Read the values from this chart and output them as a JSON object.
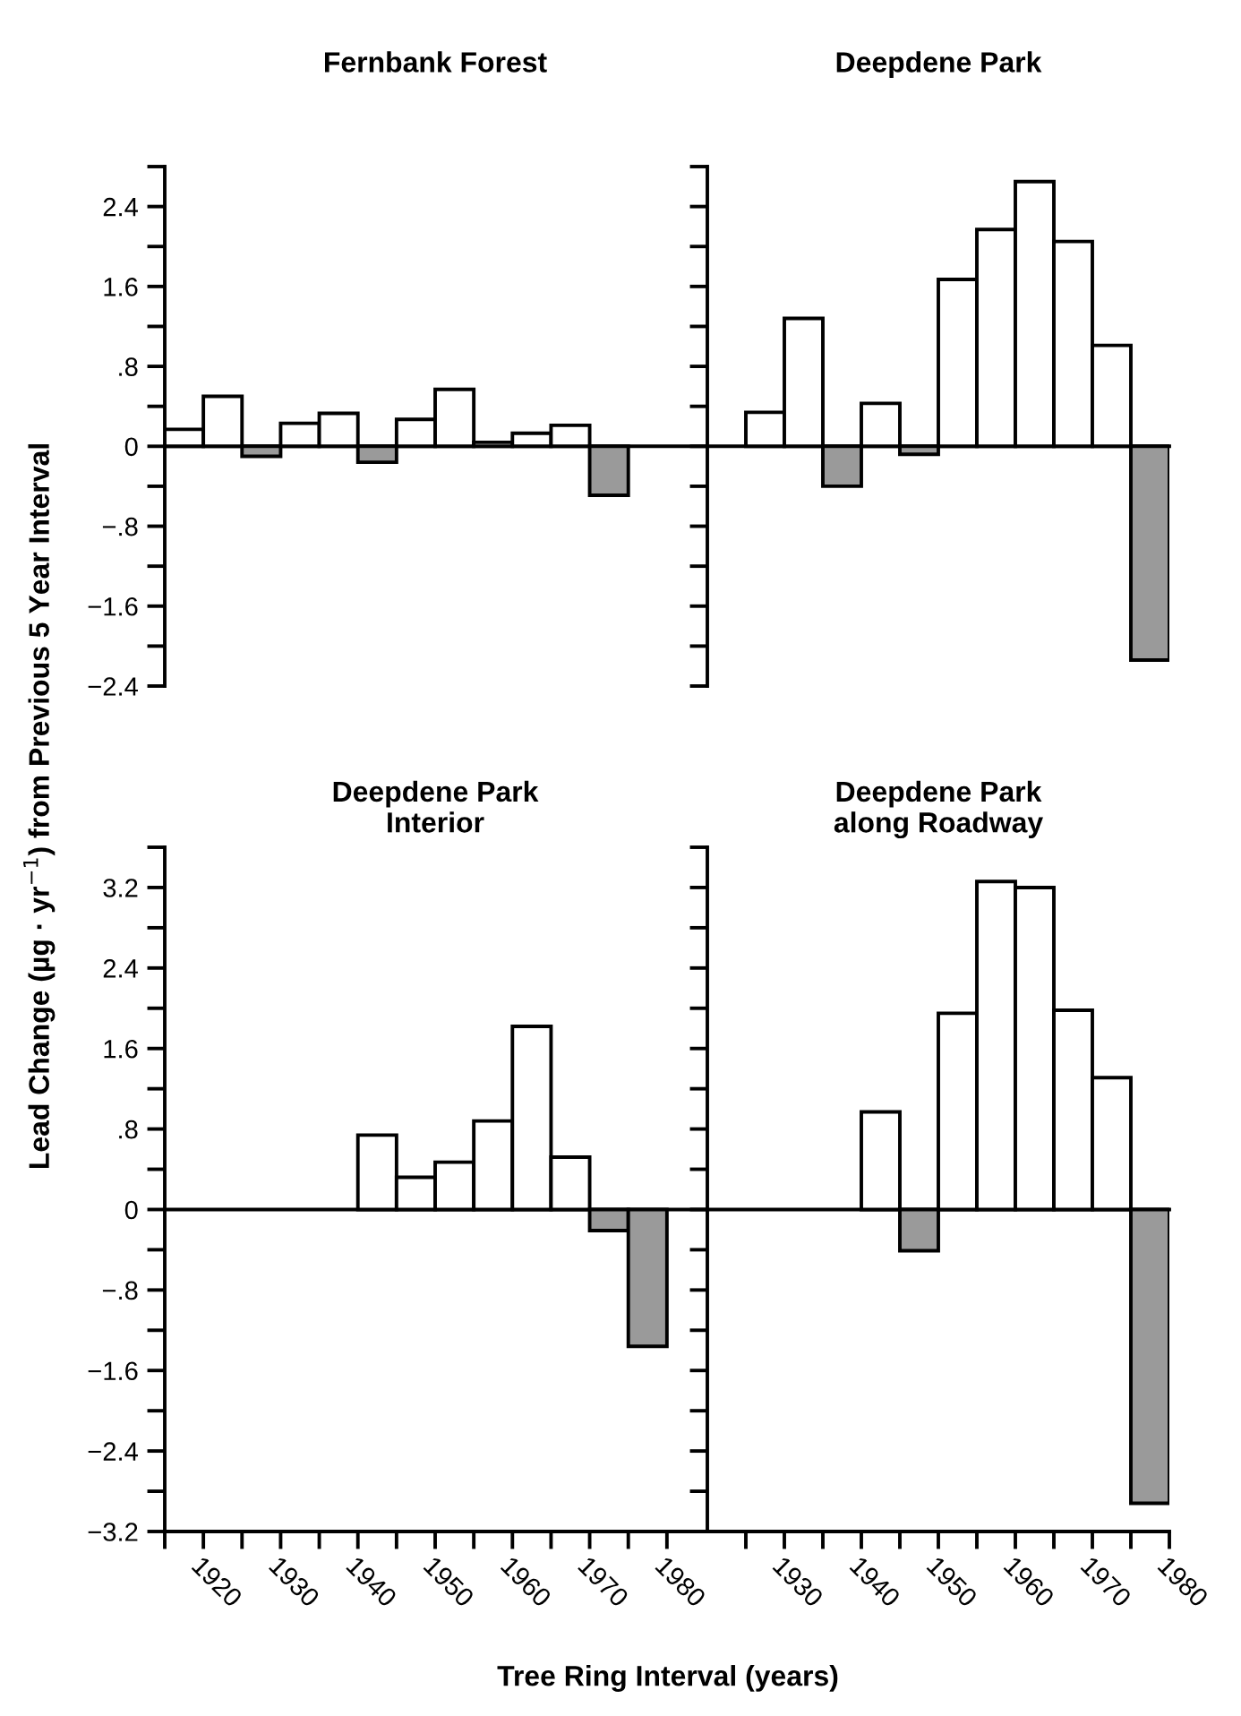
{
  "chart_data": [
    {
      "type": "bar",
      "title": "Fernbank Forest",
      "ylabel": "Lead Change (µg · yr$^{−1}$) from Previous 5 Year Interval",
      "x": [
        1917.5,
        1922.5,
        1927.5,
        1932.5,
        1937.5,
        1942.5,
        1947.5,
        1952.5,
        1957.5,
        1962.5,
        1967.5,
        1972.5
      ],
      "values": [
        0.17,
        0.5,
        -0.1,
        0.23,
        0.33,
        -0.16,
        0.27,
        0.57,
        0.04,
        0.13,
        0.21,
        -0.49
      ],
      "colors": [
        "#ffffff",
        "#ffffff",
        "#9a9a9a",
        "#ffffff",
        "#ffffff",
        "#9a9a9a",
        "#ffffff",
        "#ffffff",
        "#ffffff",
        "#ffffff",
        "#ffffff",
        "#9a9a9a"
      ],
      "xlim": [
        1915,
        1985
      ],
      "ylim": [
        -2.4,
        2.8
      ],
      "yticks": [
        {
          "value": -2.4,
          "label": "−2.4"
        },
        {
          "value": -2.0,
          "label": null
        },
        {
          "value": -1.6,
          "label": "−1.6"
        },
        {
          "value": -1.2,
          "label": null
        },
        {
          "value": -0.8,
          "label": "−.8"
        },
        {
          "value": -0.4,
          "label": null
        },
        0,
        {
          "value": 0.4,
          "label": null
        },
        {
          "value": 0.8,
          "label": ".8"
        },
        {
          "value": 1.2,
          "label": null
        },
        {
          "value": 1.6,
          "label": "1.6"
        },
        {
          "value": 2.0,
          "label": null
        },
        {
          "value": 2.4,
          "label": "2.4"
        },
        {
          "value": 2.8,
          "label": null
        }
      ],
      "tick_labels": "y",
      "ref_lines": [
        {
          "axis": "y",
          "value": 0,
          "color": "#000000"
        }
      ],
      "grid": false
    },
    {
      "type": "bar",
      "title": "Deepdene Park",
      "x": [
        1927.5,
        1932.5,
        1937.5,
        1942.5,
        1947.5,
        1952.5,
        1957.5,
        1962.5,
        1967.5,
        1972.5,
        1977.5
      ],
      "values": [
        0.34,
        1.28,
        -0.4,
        0.43,
        -0.08,
        1.67,
        2.17,
        2.65,
        2.05,
        1.01,
        -2.14
      ],
      "colors": [
        "#ffffff",
        "#ffffff",
        "#9a9a9a",
        "#ffffff",
        "#9a9a9a",
        "#ffffff",
        "#ffffff",
        "#ffffff",
        "#ffffff",
        "#ffffff",
        "#9a9a9a"
      ],
      "xlim": [
        1920,
        1980
      ],
      "ylim": [
        -2.4,
        2.8
      ],
      "yticks": [
        {
          "value": -2.4,
          "label": null
        },
        {
          "value": -2.0,
          "label": null
        },
        {
          "value": -1.6,
          "label": null
        },
        {
          "value": -1.2,
          "label": null
        },
        {
          "value": -0.8,
          "label": null
        },
        {
          "value": -0.4,
          "label": null
        },
        {
          "value": 0,
          "label": null
        },
        {
          "value": 0.4,
          "label": null
        },
        {
          "value": 0.8,
          "label": null
        },
        {
          "value": 1.2,
          "label": null
        },
        {
          "value": 1.6,
          "label": null
        },
        {
          "value": 2.0,
          "label": null
        },
        {
          "value": 2.4,
          "label": null
        },
        {
          "value": 2.8,
          "label": null
        }
      ],
      "tick_labels": false,
      "ref_lines": [
        {
          "axis": "y",
          "value": 0,
          "color": "#000000"
        }
      ],
      "grid": false
    },
    {
      "type": "bar",
      "title": "Deepdene Park\nInterior",
      "xlabel": "Tree Ring Interval (years)",
      "x": [
        1942.5,
        1947.5,
        1952.5,
        1957.5,
        1962.5,
        1967.5,
        1972.5,
        1977.5
      ],
      "values": [
        0.74,
        0.32,
        0.47,
        0.88,
        1.82,
        0.52,
        -0.21,
        -1.36
      ],
      "colors": [
        "#ffffff",
        "#ffffff",
        "#ffffff",
        "#ffffff",
        "#ffffff",
        "#ffffff",
        "#9a9a9a",
        "#9a9a9a"
      ],
      "xlim": [
        1915,
        1985
      ],
      "ylim": [
        -3.2,
        3.6
      ],
      "xticks": [
        {
          "value": 1915,
          "label": null
        },
        1920,
        {
          "value": 1925,
          "label": null
        },
        1930,
        {
          "value": 1935,
          "label": null
        },
        1940,
        {
          "value": 1945,
          "label": null
        },
        1950,
        {
          "value": 1955,
          "label": null
        },
        1960,
        {
          "value": 1965,
          "label": null
        },
        1970,
        {
          "value": 1975,
          "label": null
        },
        1980
      ],
      "yticks": [
        {
          "value": -3.2,
          "label": "−3.2"
        },
        {
          "value": -2.8,
          "label": null
        },
        {
          "value": -2.4,
          "label": "−2.4"
        },
        {
          "value": -2.0,
          "label": null
        },
        {
          "value": -1.6,
          "label": "−1.6"
        },
        {
          "value": -1.2,
          "label": null
        },
        {
          "value": -0.8,
          "label": "−.8"
        },
        {
          "value": -0.4,
          "label": null
        },
        0,
        {
          "value": 0.4,
          "label": null
        },
        {
          "value": 0.8,
          "label": ".8"
        },
        {
          "value": 1.2,
          "label": null
        },
        {
          "value": 1.6,
          "label": "1.6"
        },
        {
          "value": 2.0,
          "label": null
        },
        {
          "value": 2.4,
          "label": "2.4"
        },
        {
          "value": 2.8,
          "label": null
        },
        {
          "value": 3.2,
          "label": "3.2"
        },
        {
          "value": 3.6,
          "label": null
        }
      ],
      "ref_lines": [
        {
          "axis": "y",
          "value": 0,
          "color": "#000000"
        }
      ],
      "grid": false
    },
    {
      "type": "bar",
      "title": "Deepdene Park\nalong Roadway",
      "x": [
        1942.5,
        1947.5,
        1952.5,
        1957.5,
        1962.5,
        1967.5,
        1972.5,
        1977.5
      ],
      "values": [
        0.97,
        -0.41,
        1.95,
        3.26,
        3.2,
        1.98,
        1.31,
        -2.92
      ],
      "colors": [
        "#ffffff",
        "#9a9a9a",
        "#ffffff",
        "#ffffff",
        "#ffffff",
        "#ffffff",
        "#ffffff",
        "#9a9a9a"
      ],
      "xlim": [
        1920,
        1980
      ],
      "ylim": [
        -3.2,
        3.6
      ],
      "xticks": [
        {
          "value": 1925,
          "label": null
        },
        1930,
        {
          "value": 1935,
          "label": null
        },
        1940,
        {
          "value": 1945,
          "label": null
        },
        1950,
        {
          "value": 1955,
          "label": null
        },
        1960,
        {
          "value": 1965,
          "label": null
        },
        1970,
        {
          "value": 1975,
          "label": null
        },
        1980
      ],
      "yticks": [
        {
          "value": -3.2,
          "label": null
        },
        {
          "value": -2.8,
          "label": null
        },
        {
          "value": -2.4,
          "label": null
        },
        {
          "value": -2.0,
          "label": null
        },
        {
          "value": -1.6,
          "label": null
        },
        {
          "value": -1.2,
          "label": null
        },
        {
          "value": -0.8,
          "label": null
        },
        {
          "value": -0.4,
          "label": null
        },
        {
          "value": 0,
          "label": null
        },
        {
          "value": 0.4,
          "label": null
        },
        {
          "value": 0.8,
          "label": null
        },
        {
          "value": 1.2,
          "label": null
        },
        {
          "value": 1.6,
          "label": null
        },
        {
          "value": 2.0,
          "label": null
        },
        {
          "value": 2.4,
          "label": null
        },
        {
          "value": 2.8,
          "label": null
        },
        {
          "value": 3.2,
          "label": null
        },
        {
          "value": 3.6,
          "label": null
        }
      ],
      "tick_labels": "x",
      "ref_lines": [
        {
          "axis": "y",
          "value": 0,
          "color": "#000000"
        }
      ],
      "grid": false
    }
  ]
}
